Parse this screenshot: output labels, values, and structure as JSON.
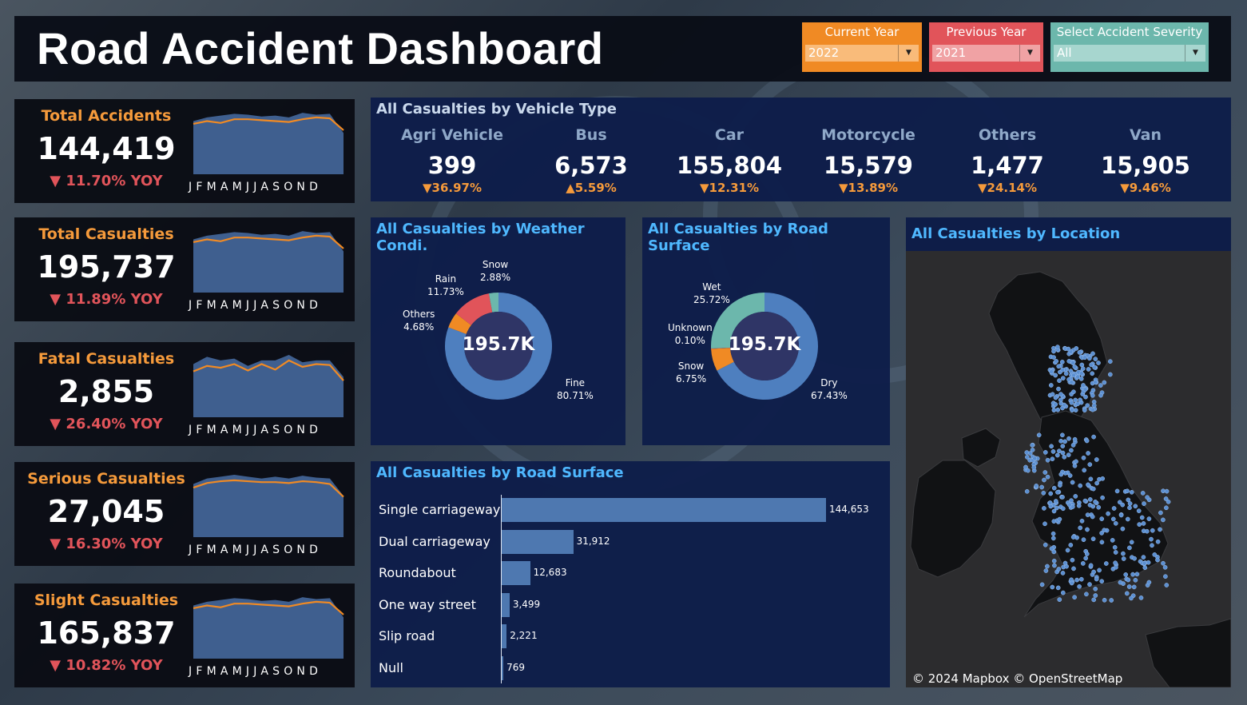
{
  "header": {
    "title": "Road Accident Dashboard",
    "filters": [
      {
        "label": "Current Year",
        "value": "2022",
        "color": "#f08a24",
        "field_color": "#f9bb7a"
      },
      {
        "label": "Previous Year",
        "value": "2021",
        "color": "#e1545a",
        "field_color": "#f0a2a4"
      },
      {
        "label": "Select Accident Severity",
        "value": "All",
        "color": "#6cb7ac",
        "field_color": "#a7d6cf"
      }
    ]
  },
  "months_axis": "JFMAMJJASOND",
  "kpis": [
    {
      "label": "Total Accidents",
      "value": "144,419",
      "yoy": "▼ 11.70% YOY",
      "area": [
        58,
        62,
        64,
        66,
        65,
        63,
        64,
        62,
        67,
        65,
        66,
        45
      ],
      "line": [
        55,
        58,
        56,
        60,
        60,
        59,
        58,
        57,
        60,
        62,
        61,
        48
      ]
    },
    {
      "label": "Total Casualties",
      "value": "195,737",
      "yoy": "▼ 11.89% YOY",
      "area": [
        58,
        62,
        64,
        66,
        65,
        63,
        64,
        62,
        67,
        65,
        66,
        45
      ],
      "line": [
        55,
        58,
        56,
        60,
        60,
        59,
        58,
        57,
        60,
        62,
        61,
        48
      ]
    },
    {
      "label": "Fatal Casualties",
      "value": "2,855",
      "yoy": "▼ 26.40% YOY",
      "area": [
        58,
        66,
        62,
        64,
        56,
        62,
        62,
        68,
        60,
        62,
        62,
        44
      ],
      "line": [
        50,
        56,
        54,
        58,
        51,
        58,
        52,
        62,
        55,
        58,
        57,
        40
      ]
    },
    {
      "label": "Serious Casualties",
      "value": "27,045",
      "yoy": "▼ 16.30% YOY",
      "area": [
        58,
        64,
        66,
        68,
        66,
        64,
        66,
        64,
        67,
        65,
        64,
        45
      ],
      "line": [
        54,
        59,
        61,
        62,
        61,
        60,
        60,
        59,
        61,
        60,
        58,
        44
      ]
    },
    {
      "label": "Slight Casualties",
      "value": "165,837",
      "yoy": "▼ 10.82% YOY",
      "area": [
        58,
        62,
        64,
        66,
        65,
        63,
        64,
        62,
        67,
        65,
        66,
        45
      ],
      "line": [
        55,
        58,
        56,
        60,
        60,
        59,
        58,
        57,
        60,
        62,
        61,
        48
      ]
    }
  ],
  "vehicle": {
    "title": "All Casualties by Vehicle Type",
    "items": [
      {
        "name": "Agri Vehicle",
        "value": "399",
        "yoy": "36.97%",
        "dir": "down"
      },
      {
        "name": "Bus",
        "value": "6,573",
        "yoy": "5.59%",
        "dir": "up"
      },
      {
        "name": "Car",
        "value": "155,804",
        "yoy": "12.31%",
        "dir": "down"
      },
      {
        "name": "Motorcycle",
        "value": "15,579",
        "yoy": "13.89%",
        "dir": "down"
      },
      {
        "name": "Others",
        "value": "1,477",
        "yoy": "24.14%",
        "dir": "down"
      },
      {
        "name": "Van",
        "value": "15,905",
        "yoy": "9.46%",
        "dir": "down"
      }
    ]
  },
  "weather": {
    "title": "All Casualties by Weather Condi.",
    "center": "195.7K",
    "slices": [
      {
        "name": "Fine",
        "pct": "80.71%",
        "value": 80.71,
        "color": "#4e7fbf"
      },
      {
        "name": "Others",
        "pct": "4.68%",
        "value": 4.68,
        "color": "#f08a24"
      },
      {
        "name": "Rain",
        "pct": "11.73%",
        "value": 11.73,
        "color": "#e1545a"
      },
      {
        "name": "Snow",
        "pct": "2.88%",
        "value": 2.88,
        "color": "#6cb7ac"
      }
    ]
  },
  "surface": {
    "title": "All Casualties by Road Surface",
    "center": "195.7K",
    "slices": [
      {
        "name": "Dry",
        "pct": "67.43%",
        "value": 67.43,
        "color": "#4e7fbf"
      },
      {
        "name": "Snow",
        "pct": "6.75%",
        "value": 6.75,
        "color": "#f08a24"
      },
      {
        "name": "Unknown",
        "pct": "0.10%",
        "value": 0.1,
        "color": "#e1545a"
      },
      {
        "name": "Wet",
        "pct": "25.72%",
        "value": 25.72,
        "color": "#6cb7ac"
      }
    ]
  },
  "location": {
    "title": "All Casualties by Location",
    "credit": "© 2024 Mapbox © OpenStreetMap"
  },
  "road": {
    "title": "All Casualties by Road Surface",
    "categories": [
      "Single carriageway",
      "Dual carriageway",
      "Roundabout",
      "One way street",
      "Slip road",
      "Null"
    ],
    "values": [
      144653,
      31912,
      12683,
      3499,
      2221,
      769
    ],
    "labels": [
      "144,653",
      "31,912",
      "12,683",
      "3,499",
      "2,221",
      "769"
    ]
  },
  "chart_data": [
    {
      "type": "line",
      "title": "Total Accidents",
      "categories": [
        "J",
        "F",
        "M",
        "A",
        "M",
        "J",
        "J",
        "A",
        "S",
        "O",
        "N",
        "D"
      ],
      "series": [
        {
          "name": "Current Year",
          "values": [
            58,
            62,
            64,
            66,
            65,
            63,
            64,
            62,
            67,
            65,
            66,
            45
          ]
        },
        {
          "name": "Previous Year",
          "values": [
            55,
            58,
            56,
            60,
            60,
            59,
            58,
            57,
            60,
            62,
            61,
            48
          ]
        }
      ]
    },
    {
      "type": "pie",
      "title": "All Casualties by Weather Condi.",
      "categories": [
        "Fine",
        "Others",
        "Rain",
        "Snow"
      ],
      "values": [
        80.71,
        4.68,
        11.73,
        2.88
      ]
    },
    {
      "type": "pie",
      "title": "All Casualties by Road Surface",
      "categories": [
        "Dry",
        "Snow",
        "Unknown",
        "Wet"
      ],
      "values": [
        67.43,
        6.75,
        0.1,
        25.72
      ]
    },
    {
      "type": "bar",
      "title": "All Casualties by Road Surface",
      "categories": [
        "Single carriageway",
        "Dual carriageway",
        "Roundabout",
        "One way street",
        "Slip road",
        "Null"
      ],
      "values": [
        144653,
        31912,
        12683,
        3499,
        2221,
        769
      ]
    }
  ]
}
